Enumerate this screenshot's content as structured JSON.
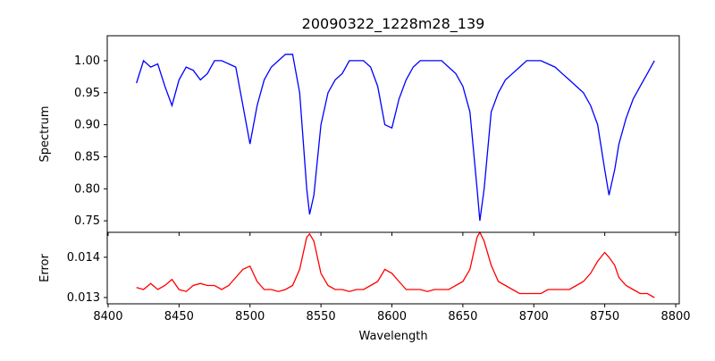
{
  "chart_data": [
    {
      "type": "line",
      "title": "20090322_1228m28_139",
      "xlabel": "",
      "ylabel": "Spectrum",
      "xlim": [
        8399.4,
        8802.5
      ],
      "ylim": [
        0.732,
        1.039
      ],
      "xticks": [
        8400,
        8450,
        8500,
        8550,
        8600,
        8650,
        8700,
        8750,
        8800
      ],
      "yticks": [
        0.75,
        0.8,
        0.85,
        0.9,
        0.95,
        1.0
      ],
      "ytick_labels": [
        "0.75",
        "0.80",
        "0.85",
        "0.90",
        "0.95",
        "1.00"
      ],
      "color": "#0000ff",
      "series": [
        {
          "name": "Spectrum",
          "x": [
            8420,
            8425,
            8430,
            8435,
            8440,
            8445,
            8450,
            8455,
            8460,
            8465,
            8470,
            8475,
            8480,
            8485,
            8490,
            8495,
            8500,
            8505,
            8510,
            8515,
            8520,
            8525,
            8530,
            8535,
            8540,
            8542,
            8545,
            8550,
            8555,
            8560,
            8565,
            8570,
            8575,
            8580,
            8585,
            8590,
            8595,
            8600,
            8605,
            8610,
            8615,
            8620,
            8625,
            8630,
            8635,
            8640,
            8645,
            8650,
            8655,
            8660,
            8662,
            8665,
            8670,
            8675,
            8680,
            8685,
            8690,
            8695,
            8700,
            8705,
            8710,
            8715,
            8720,
            8725,
            8730,
            8735,
            8740,
            8745,
            8750,
            8753,
            8757,
            8760,
            8765,
            8770,
            8775,
            8780,
            8785
          ],
          "y": [
            0.965,
            1.0,
            0.99,
            0.995,
            0.96,
            0.93,
            0.97,
            0.99,
            0.985,
            0.97,
            0.98,
            1.0,
            1.0,
            0.995,
            0.99,
            0.93,
            0.87,
            0.93,
            0.97,
            0.99,
            1.0,
            1.01,
            1.01,
            0.95,
            0.8,
            0.76,
            0.79,
            0.9,
            0.95,
            0.97,
            0.98,
            1.0,
            1.0,
            1.0,
            0.99,
            0.96,
            0.9,
            0.895,
            0.94,
            0.97,
            0.99,
            1.0,
            1.0,
            1.0,
            1.0,
            0.99,
            0.98,
            0.96,
            0.92,
            0.8,
            0.75,
            0.8,
            0.92,
            0.95,
            0.97,
            0.98,
            0.99,
            1.0,
            1.0,
            1.0,
            0.995,
            0.99,
            0.98,
            0.97,
            0.96,
            0.95,
            0.93,
            0.9,
            0.83,
            0.79,
            0.83,
            0.87,
            0.91,
            0.94,
            0.96,
            0.98,
            1.0
          ]
        }
      ]
    },
    {
      "type": "line",
      "title": "",
      "xlabel": "Wavelength",
      "ylabel": "Error",
      "xlim": [
        8399.4,
        8802.5
      ],
      "ylim": [
        0.012844,
        0.01462
      ],
      "xticks": [
        8400,
        8450,
        8500,
        8550,
        8600,
        8650,
        8700,
        8750,
        8800
      ],
      "xtick_labels": [
        "8400",
        "8450",
        "8500",
        "8550",
        "8600",
        "8650",
        "8700",
        "8750",
        "8800"
      ],
      "yticks": [
        0.013,
        0.014
      ],
      "ytick_labels": [
        "0.013",
        "0.014"
      ],
      "color": "#ff0000",
      "series": [
        {
          "name": "Error",
          "x": [
            8420,
            8425,
            8430,
            8435,
            8440,
            8445,
            8450,
            8455,
            8460,
            8465,
            8470,
            8475,
            8480,
            8485,
            8490,
            8495,
            8500,
            8505,
            8510,
            8515,
            8520,
            8525,
            8530,
            8535,
            8540,
            8542,
            8545,
            8550,
            8555,
            8560,
            8565,
            8570,
            8575,
            8580,
            8585,
            8590,
            8595,
            8600,
            8605,
            8610,
            8615,
            8620,
            8625,
            8630,
            8635,
            8640,
            8645,
            8650,
            8655,
            8660,
            8662,
            8665,
            8670,
            8675,
            8680,
            8685,
            8690,
            8695,
            8700,
            8705,
            8710,
            8715,
            8720,
            8725,
            8730,
            8735,
            8740,
            8745,
            8750,
            8753,
            8757,
            8760,
            8765,
            8770,
            8775,
            8780,
            8785
          ],
          "y": [
            0.01325,
            0.0132,
            0.01335,
            0.0132,
            0.0133,
            0.01345,
            0.0132,
            0.01315,
            0.0133,
            0.01335,
            0.0133,
            0.0133,
            0.0132,
            0.0133,
            0.0135,
            0.0137,
            0.01378,
            0.0134,
            0.0132,
            0.0132,
            0.01315,
            0.0132,
            0.0133,
            0.0137,
            0.0145,
            0.01458,
            0.0144,
            0.0136,
            0.0133,
            0.0132,
            0.0132,
            0.01315,
            0.0132,
            0.0132,
            0.0133,
            0.0134,
            0.0137,
            0.0136,
            0.0134,
            0.0132,
            0.0132,
            0.0132,
            0.01315,
            0.0132,
            0.0132,
            0.0132,
            0.0133,
            0.0134,
            0.0137,
            0.0145,
            0.01462,
            0.0144,
            0.0138,
            0.0134,
            0.0133,
            0.0132,
            0.0131,
            0.0131,
            0.0131,
            0.0131,
            0.0132,
            0.0132,
            0.0132,
            0.0132,
            0.0133,
            0.0134,
            0.0136,
            0.0139,
            0.01412,
            0.014,
            0.0138,
            0.0135,
            0.0133,
            0.0132,
            0.0131,
            0.0131,
            0.013
          ]
        }
      ]
    }
  ]
}
